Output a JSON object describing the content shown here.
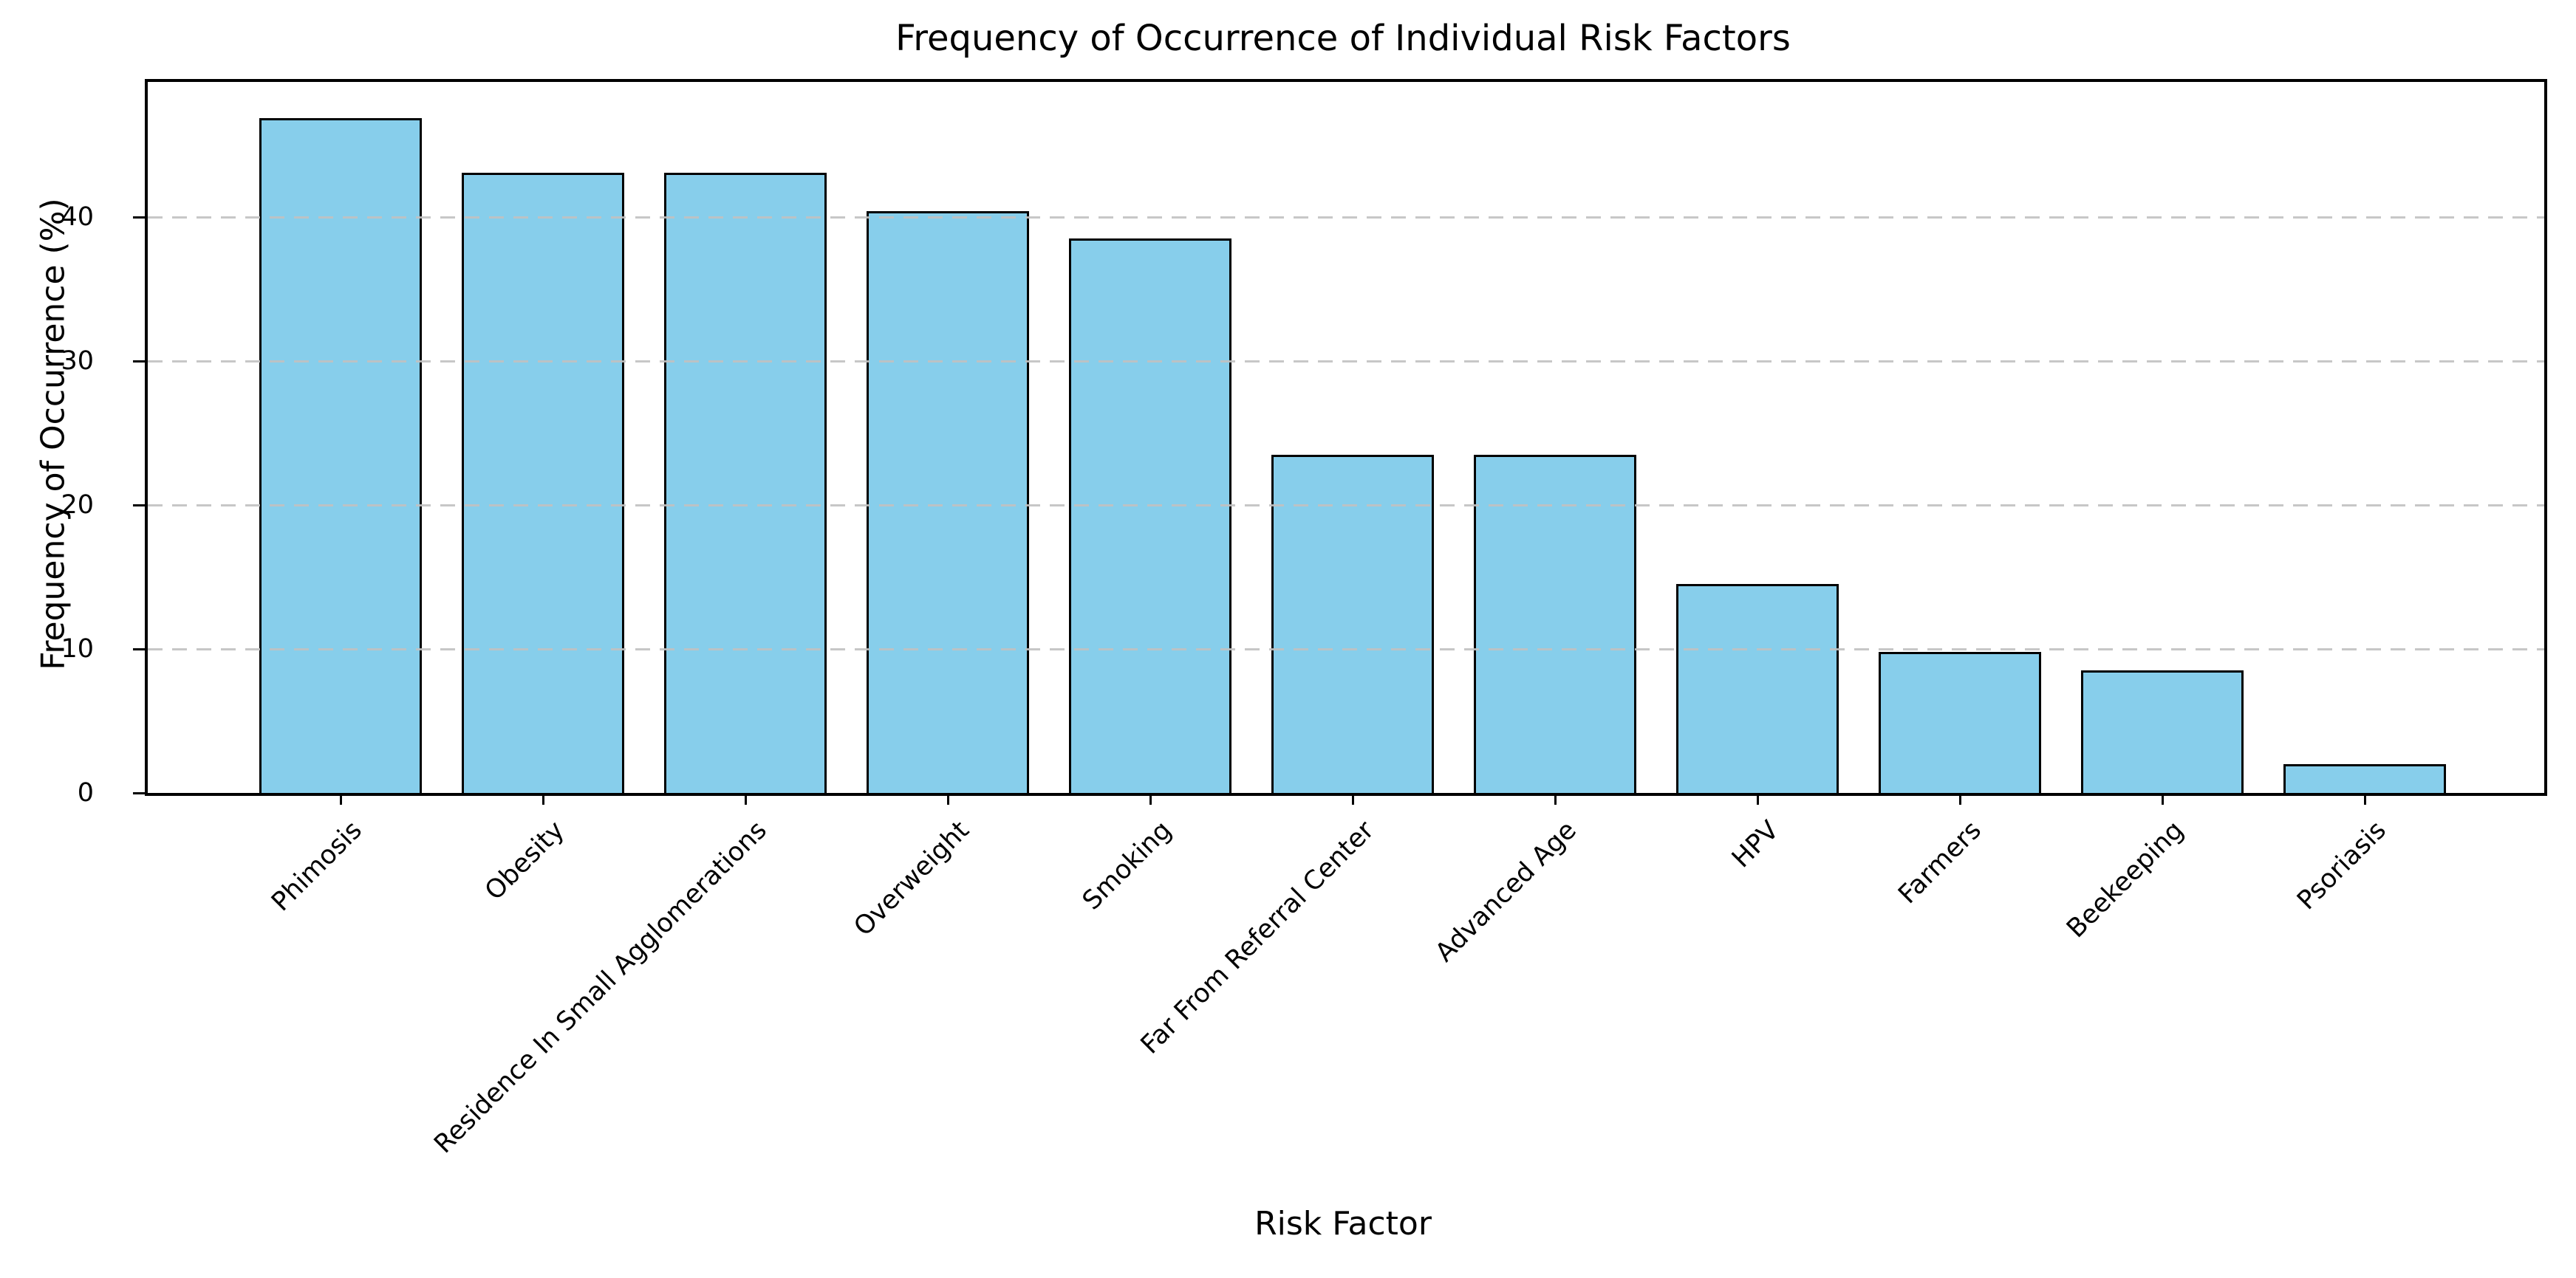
{
  "chart_data": {
    "type": "bar",
    "title": "Frequency of Occurrence of Individual Risk Factors",
    "xlabel": "Risk Factor",
    "ylabel": "Frequency of Occurrence (%)",
    "categories": [
      "Phimosis",
      "Obesity",
      "Residence In Small Agglomerations",
      "Overweight",
      "Smoking",
      "Far From Referral Center",
      "Advanced Age",
      "HPV",
      "Farmers",
      "Beekeeping",
      "Psoriasis"
    ],
    "values": [
      46.9,
      43.1,
      43.1,
      40.4,
      38.5,
      23.5,
      23.5,
      14.5,
      9.8,
      8.5,
      2.0
    ],
    "ylim": [
      0,
      49.4
    ],
    "yticks": [
      0,
      10,
      20,
      30,
      40
    ],
    "grid": "horizontal-dashed",
    "grid_color": "#c1c1c1",
    "bar_color": "#87CEEB",
    "bar_edge_color": "#000000",
    "text_color": "#000000",
    "background_color": "#ffffff",
    "x_tick_rotation_deg": 45,
    "legend": "none"
  }
}
